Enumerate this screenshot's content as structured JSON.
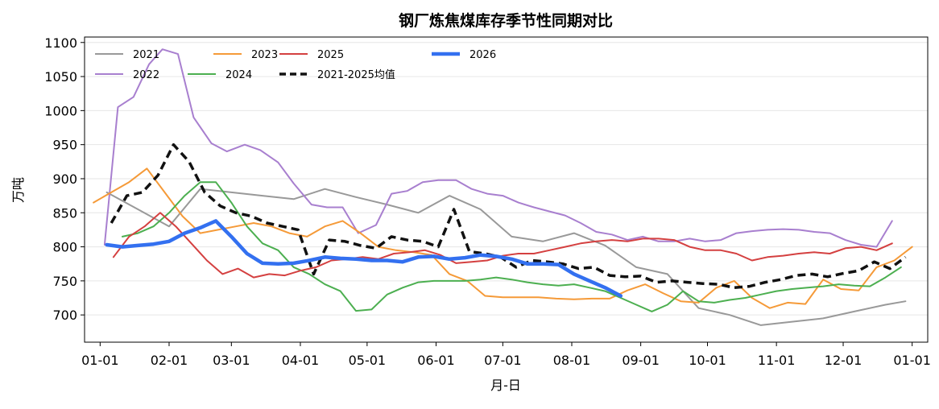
{
  "chart_data": {
    "type": "line",
    "title": "钢厂炼焦煤库存季节性同期对比",
    "xlabel": "月-日",
    "ylabel": "万吨",
    "x_ticks": [
      "01-01",
      "02-01",
      "03-01",
      "04-01",
      "05-01",
      "06-01",
      "07-01",
      "08-01",
      "09-01",
      "10-01",
      "11-01",
      "12-01",
      "01-01"
    ],
    "y_ticks": [
      700,
      750,
      800,
      850,
      900,
      950,
      1000,
      1050,
      1100
    ],
    "xlim": [
      -7,
      372
    ],
    "ylim": [
      660,
      1108
    ],
    "grid": "horizontal",
    "legend_position": "top-left",
    "series": [
      {
        "name": "2021",
        "color": "#999999",
        "style": "solid",
        "width": 2,
        "x": [
          3,
          17,
          31,
          45,
          59,
          73,
          87,
          101,
          115,
          129,
          143,
          157,
          171,
          185,
          199,
          213,
          227,
          241,
          255,
          269,
          283,
          297,
          311,
          325,
          339,
          353,
          362
        ],
        "y": [
          880,
          855,
          830,
          885,
          880,
          875,
          870,
          885,
          873,
          862,
          850,
          875,
          855,
          815,
          808,
          820,
          802,
          770,
          760,
          710,
          700,
          685,
          690,
          695,
          705,
          715,
          720
        ]
      },
      {
        "name": "2022",
        "color": "#a87fcf",
        "style": "solid",
        "width": 2,
        "x": [
          2,
          8,
          15,
          22,
          28,
          35,
          42,
          50,
          57,
          65,
          72,
          80,
          87,
          95,
          102,
          109,
          116,
          124,
          131,
          138,
          145,
          152,
          160,
          167,
          174,
          181,
          188,
          195,
          202,
          209,
          216,
          223,
          230,
          237,
          244,
          251,
          258,
          265,
          272,
          279,
          286,
          293,
          300,
          307,
          314,
          321,
          328,
          335,
          342,
          349,
          356
        ],
        "y": [
          803,
          1005,
          1020,
          1068,
          1090,
          1083,
          990,
          952,
          940,
          950,
          942,
          924,
          893,
          862,
          858,
          858,
          820,
          832,
          878,
          882,
          895,
          898,
          898,
          885,
          878,
          875,
          865,
          858,
          852,
          846,
          835,
          822,
          818,
          810,
          815,
          808,
          808,
          812,
          808,
          810,
          820,
          823,
          825,
          826,
          825,
          822,
          820,
          810,
          803,
          800,
          838
        ]
      },
      {
        "name": "2023",
        "color": "#f59a38",
        "style": "solid",
        "width": 2,
        "x": [
          -3,
          5,
          13,
          21,
          29,
          37,
          45,
          53,
          61,
          69,
          77,
          85,
          93,
          101,
          109,
          117,
          125,
          133,
          141,
          149,
          157,
          165,
          173,
          181,
          189,
          197,
          205,
          213,
          221,
          229,
          237,
          245,
          253,
          261,
          269,
          277,
          285,
          293,
          301,
          309,
          317,
          325,
          333,
          341,
          349,
          357,
          365
        ],
        "y": [
          865,
          880,
          895,
          915,
          880,
          845,
          820,
          825,
          830,
          835,
          830,
          820,
          815,
          830,
          838,
          820,
          800,
          795,
          792,
          788,
          760,
          750,
          728,
          726,
          726,
          726,
          724,
          723,
          724,
          724,
          736,
          745,
          732,
          720,
          718,
          740,
          750,
          725,
          710,
          718,
          716,
          752,
          738,
          736,
          770,
          780,
          800
        ]
      },
      {
        "name": "2024",
        "color": "#4caf50",
        "style": "solid",
        "width": 2,
        "x": [
          10,
          17,
          24,
          31,
          38,
          45,
          52,
          59,
          66,
          73,
          80,
          87,
          94,
          101,
          108,
          115,
          122,
          129,
          136,
          143,
          150,
          157,
          164,
          171,
          178,
          185,
          192,
          199,
          206,
          213,
          220,
          227,
          234,
          241,
          248,
          255,
          262,
          269,
          276,
          283,
          290,
          297,
          304,
          311,
          318,
          325,
          332,
          339,
          346,
          353,
          360
        ],
        "y": [
          815,
          820,
          830,
          850,
          875,
          895,
          895,
          865,
          830,
          805,
          795,
          770,
          760,
          745,
          735,
          706,
          708,
          730,
          740,
          748,
          750,
          750,
          750,
          752,
          755,
          752,
          748,
          745,
          743,
          745,
          740,
          735,
          725,
          715,
          705,
          715,
          735,
          720,
          718,
          722,
          725,
          730,
          735,
          738,
          740,
          742,
          745,
          743,
          742,
          755,
          770
        ]
      },
      {
        "name": "2025",
        "color": "#d44040",
        "style": "solid",
        "width": 2,
        "x": [
          6,
          13,
          20,
          27,
          34,
          41,
          48,
          55,
          62,
          69,
          76,
          83,
          90,
          97,
          104,
          111,
          118,
          125,
          132,
          139,
          146,
          153,
          160,
          167,
          174,
          181,
          188,
          195,
          202,
          209,
          216,
          223,
          230,
          237,
          244,
          251,
          258,
          265,
          272,
          279,
          286,
          293,
          300,
          307,
          314,
          321,
          328,
          335,
          342,
          349,
          356
        ],
        "y": [
          785,
          815,
          830,
          850,
          830,
          805,
          780,
          760,
          768,
          755,
          760,
          758,
          765,
          770,
          780,
          782,
          785,
          782,
          790,
          792,
          795,
          788,
          776,
          778,
          780,
          787,
          790,
          790,
          795,
          800,
          805,
          808,
          810,
          808,
          812,
          812,
          810,
          800,
          795,
          795,
          790,
          780,
          785,
          787,
          790,
          792,
          790,
          798,
          800,
          795,
          805
        ]
      },
      {
        "name": "2021-2025均值",
        "color": "#111111",
        "style": "dashed",
        "width": 3.5,
        "x": [
          5,
          12,
          19,
          26,
          33,
          40,
          47,
          54,
          61,
          68,
          75,
          82,
          89,
          96,
          103,
          110,
          117,
          124,
          131,
          138,
          145,
          152,
          159,
          166,
          173,
          180,
          187,
          194,
          201,
          208,
          215,
          222,
          229,
          236,
          243,
          250,
          257,
          264,
          271,
          278,
          285,
          292,
          299,
          306,
          313,
          320,
          327,
          334,
          341,
          348,
          355,
          362
        ],
        "y": [
          835,
          875,
          880,
          905,
          950,
          925,
          880,
          860,
          850,
          845,
          835,
          830,
          825,
          760,
          810,
          808,
          802,
          798,
          815,
          810,
          808,
          800,
          855,
          793,
          790,
          785,
          770,
          780,
          778,
          775,
          768,
          770,
          758,
          756,
          757,
          748,
          750,
          748,
          746,
          745,
          740,
          742,
          748,
          752,
          758,
          760,
          756,
          761,
          765,
          778,
          768,
          785
        ]
      },
      {
        "name": "2026",
        "color": "#3370f0",
        "style": "solid",
        "width": 4.5,
        "x": [
          3,
          10,
          17,
          24,
          31,
          38,
          45,
          52,
          59,
          66,
          73,
          80,
          87,
          94,
          101,
          108,
          115,
          122,
          129,
          136,
          143,
          150,
          157,
          164,
          171,
          178,
          185,
          192,
          199,
          206,
          213,
          220,
          227,
          234
        ],
        "y": [
          803,
          800,
          802,
          804,
          808,
          820,
          828,
          838,
          815,
          790,
          776,
          775,
          776,
          780,
          785,
          783,
          782,
          780,
          780,
          778,
          785,
          786,
          782,
          784,
          788,
          786,
          782,
          775,
          775,
          774,
          760,
          750,
          740,
          728
        ]
      }
    ]
  }
}
